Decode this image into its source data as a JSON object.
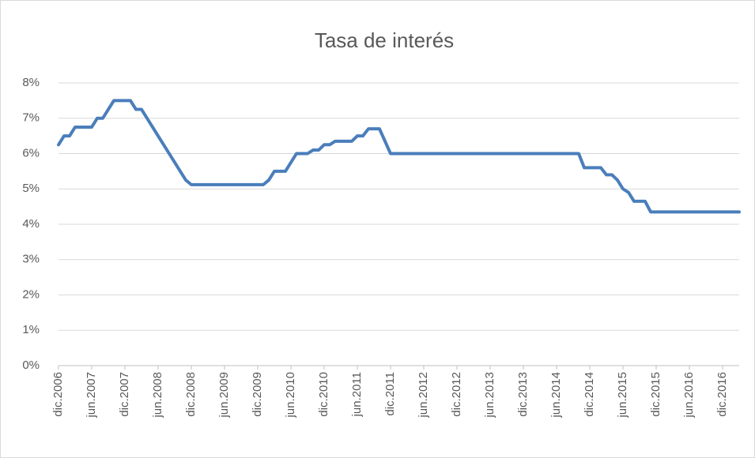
{
  "chart_data": {
    "type": "line",
    "title": "Tasa de interés",
    "categories": [
      "dic.2006",
      null,
      null,
      null,
      null,
      null,
      "jun.2007",
      null,
      null,
      null,
      null,
      null,
      "dic.2007",
      null,
      null,
      null,
      null,
      null,
      "jun.2008",
      null,
      null,
      null,
      null,
      null,
      "dic.2008",
      null,
      null,
      null,
      null,
      null,
      "jun.2009",
      null,
      null,
      null,
      null,
      null,
      "dic.2009",
      null,
      null,
      null,
      null,
      null,
      "jun.2010",
      null,
      null,
      null,
      null,
      null,
      "dic.2010",
      null,
      null,
      null,
      null,
      null,
      "jun.2011",
      null,
      null,
      null,
      null,
      null,
      "dic.2011",
      null,
      null,
      null,
      null,
      null,
      "jun.2012",
      null,
      null,
      null,
      null,
      null,
      "dic.2012",
      null,
      null,
      null,
      null,
      null,
      "jun.2013",
      null,
      null,
      null,
      null,
      null,
      "dic.2013",
      null,
      null,
      null,
      null,
      null,
      "jun.2014",
      null,
      null,
      null,
      null,
      null,
      "dic.2014",
      null,
      null,
      null,
      null,
      null,
      "jun.2015",
      null,
      null,
      null,
      null,
      null,
      "dic.2015",
      null,
      null,
      null,
      null,
      null,
      "jun.2016",
      null,
      null,
      null,
      null,
      null,
      "dic.2016",
      null,
      null,
      null
    ],
    "series": [
      {
        "color": "#4a7ebb",
        "values": [
          6.25,
          6.5,
          6.5,
          6.75,
          6.75,
          6.75,
          6.75,
          7.0,
          7.0,
          7.25,
          7.5,
          7.5,
          7.5,
          7.5,
          7.25,
          7.25,
          7.0,
          6.75,
          6.5,
          6.25,
          6.0,
          5.75,
          5.5,
          5.25,
          5.12,
          5.12,
          5.12,
          5.12,
          5.12,
          5.12,
          5.12,
          5.12,
          5.12,
          5.12,
          5.12,
          5.12,
          5.12,
          5.12,
          5.25,
          5.5,
          5.5,
          5.5,
          5.75,
          6.0,
          6.0,
          6.0,
          6.1,
          6.1,
          6.25,
          6.25,
          6.35,
          6.35,
          6.35,
          6.35,
          6.5,
          6.5,
          6.7,
          6.7,
          6.7,
          6.35,
          6.0,
          6.0,
          6.0,
          6.0,
          6.0,
          6.0,
          6.0,
          6.0,
          6.0,
          6.0,
          6.0,
          6.0,
          6.0,
          6.0,
          6.0,
          6.0,
          6.0,
          6.0,
          6.0,
          6.0,
          6.0,
          6.0,
          6.0,
          6.0,
          6.0,
          6.0,
          6.0,
          6.0,
          6.0,
          6.0,
          6.0,
          6.0,
          6.0,
          6.0,
          6.0,
          5.6,
          5.6,
          5.6,
          5.6,
          5.4,
          5.4,
          5.25,
          5.0,
          4.9,
          4.65,
          4.65,
          4.65,
          4.35,
          4.35,
          4.35,
          4.35,
          4.35,
          4.35,
          4.35,
          4.35,
          4.35,
          4.35,
          4.35,
          4.35,
          4.35,
          4.35,
          4.35,
          4.35,
          4.35
        ]
      }
    ],
    "ylim": [
      0,
      8
    ],
    "yticks": [
      {
        "value": 0,
        "label": "0%"
      },
      {
        "value": 1,
        "label": "1%"
      },
      {
        "value": 2,
        "label": "2%"
      },
      {
        "value": 3,
        "label": "3%"
      },
      {
        "value": 4,
        "label": "4%"
      },
      {
        "value": 5,
        "label": "5%"
      },
      {
        "value": 6,
        "label": "6%"
      },
      {
        "value": 7,
        "label": "7%"
      },
      {
        "value": 8,
        "label": "8%"
      }
    ],
    "grid": true
  }
}
